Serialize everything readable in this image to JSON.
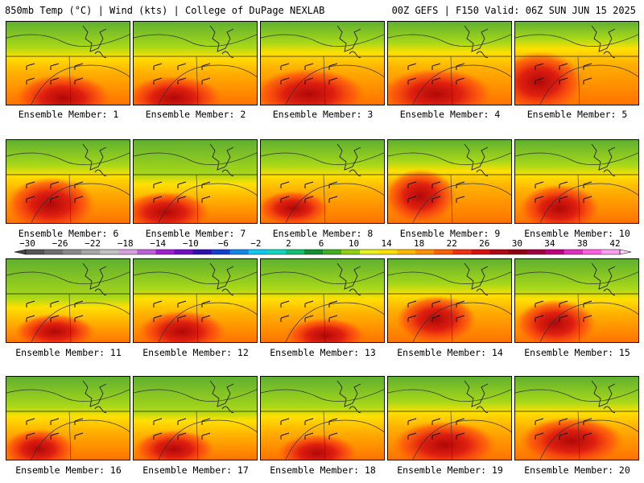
{
  "header": {
    "left_title": "850mb Temp (°C) | Wind (kts) | College of DuPage NEXLAB",
    "right_title": "00Z GEFS | F150 Valid: 06Z SUN JUN 15 2025"
  },
  "colorbar": {
    "tick_labels": [
      "−30",
      "−26",
      "−22",
      "−18",
      "−14",
      "−10",
      "−6",
      "−2",
      "2",
      "6",
      "10",
      "14",
      "18",
      "22",
      "26",
      "30",
      "34",
      "38",
      "42"
    ],
    "colors": [
      "#555555",
      "#6f6f6f",
      "#8a8a8a",
      "#a8a8a8",
      "#c3c3c3",
      "#d8a0e0",
      "#c060d8",
      "#a020d0",
      "#7010c0",
      "#3010b0",
      "#1040d0",
      "#1088e8",
      "#10c8f0",
      "#10d8c0",
      "#10c070",
      "#109030",
      "#40b020",
      "#90d010",
      "#e8f020",
      "#ffe000",
      "#ffb800",
      "#ff9000",
      "#ff6000",
      "#f03010",
      "#d81010",
      "#b00818",
      "#900010",
      "#a00040",
      "#c00080",
      "#e030c0",
      "#ff60e0",
      "#ffa0f0"
    ]
  },
  "members": [
    {
      "label": "Ensemble Member: 1"
    },
    {
      "label": "Ensemble Member: 2"
    },
    {
      "label": "Ensemble Member: 3"
    },
    {
      "label": "Ensemble Member: 4"
    },
    {
      "label": "Ensemble Member: 5"
    },
    {
      "label": "Ensemble Member: 6"
    },
    {
      "label": "Ensemble Member: 7"
    },
    {
      "label": "Ensemble Member: 8"
    },
    {
      "label": "Ensemble Member: 9"
    },
    {
      "label": "Ensemble Member: 10"
    },
    {
      "label": "Ensemble Member: 11"
    },
    {
      "label": "Ensemble Member: 12"
    },
    {
      "label": "Ensemble Member: 13"
    },
    {
      "label": "Ensemble Member: 14"
    },
    {
      "label": "Ensemble Member: 15"
    },
    {
      "label": "Ensemble Member: 16"
    },
    {
      "label": "Ensemble Member: 17"
    },
    {
      "label": "Ensemble Member: 18"
    },
    {
      "label": "Ensemble Member: 19"
    },
    {
      "label": "Ensemble Member: 20"
    }
  ]
}
